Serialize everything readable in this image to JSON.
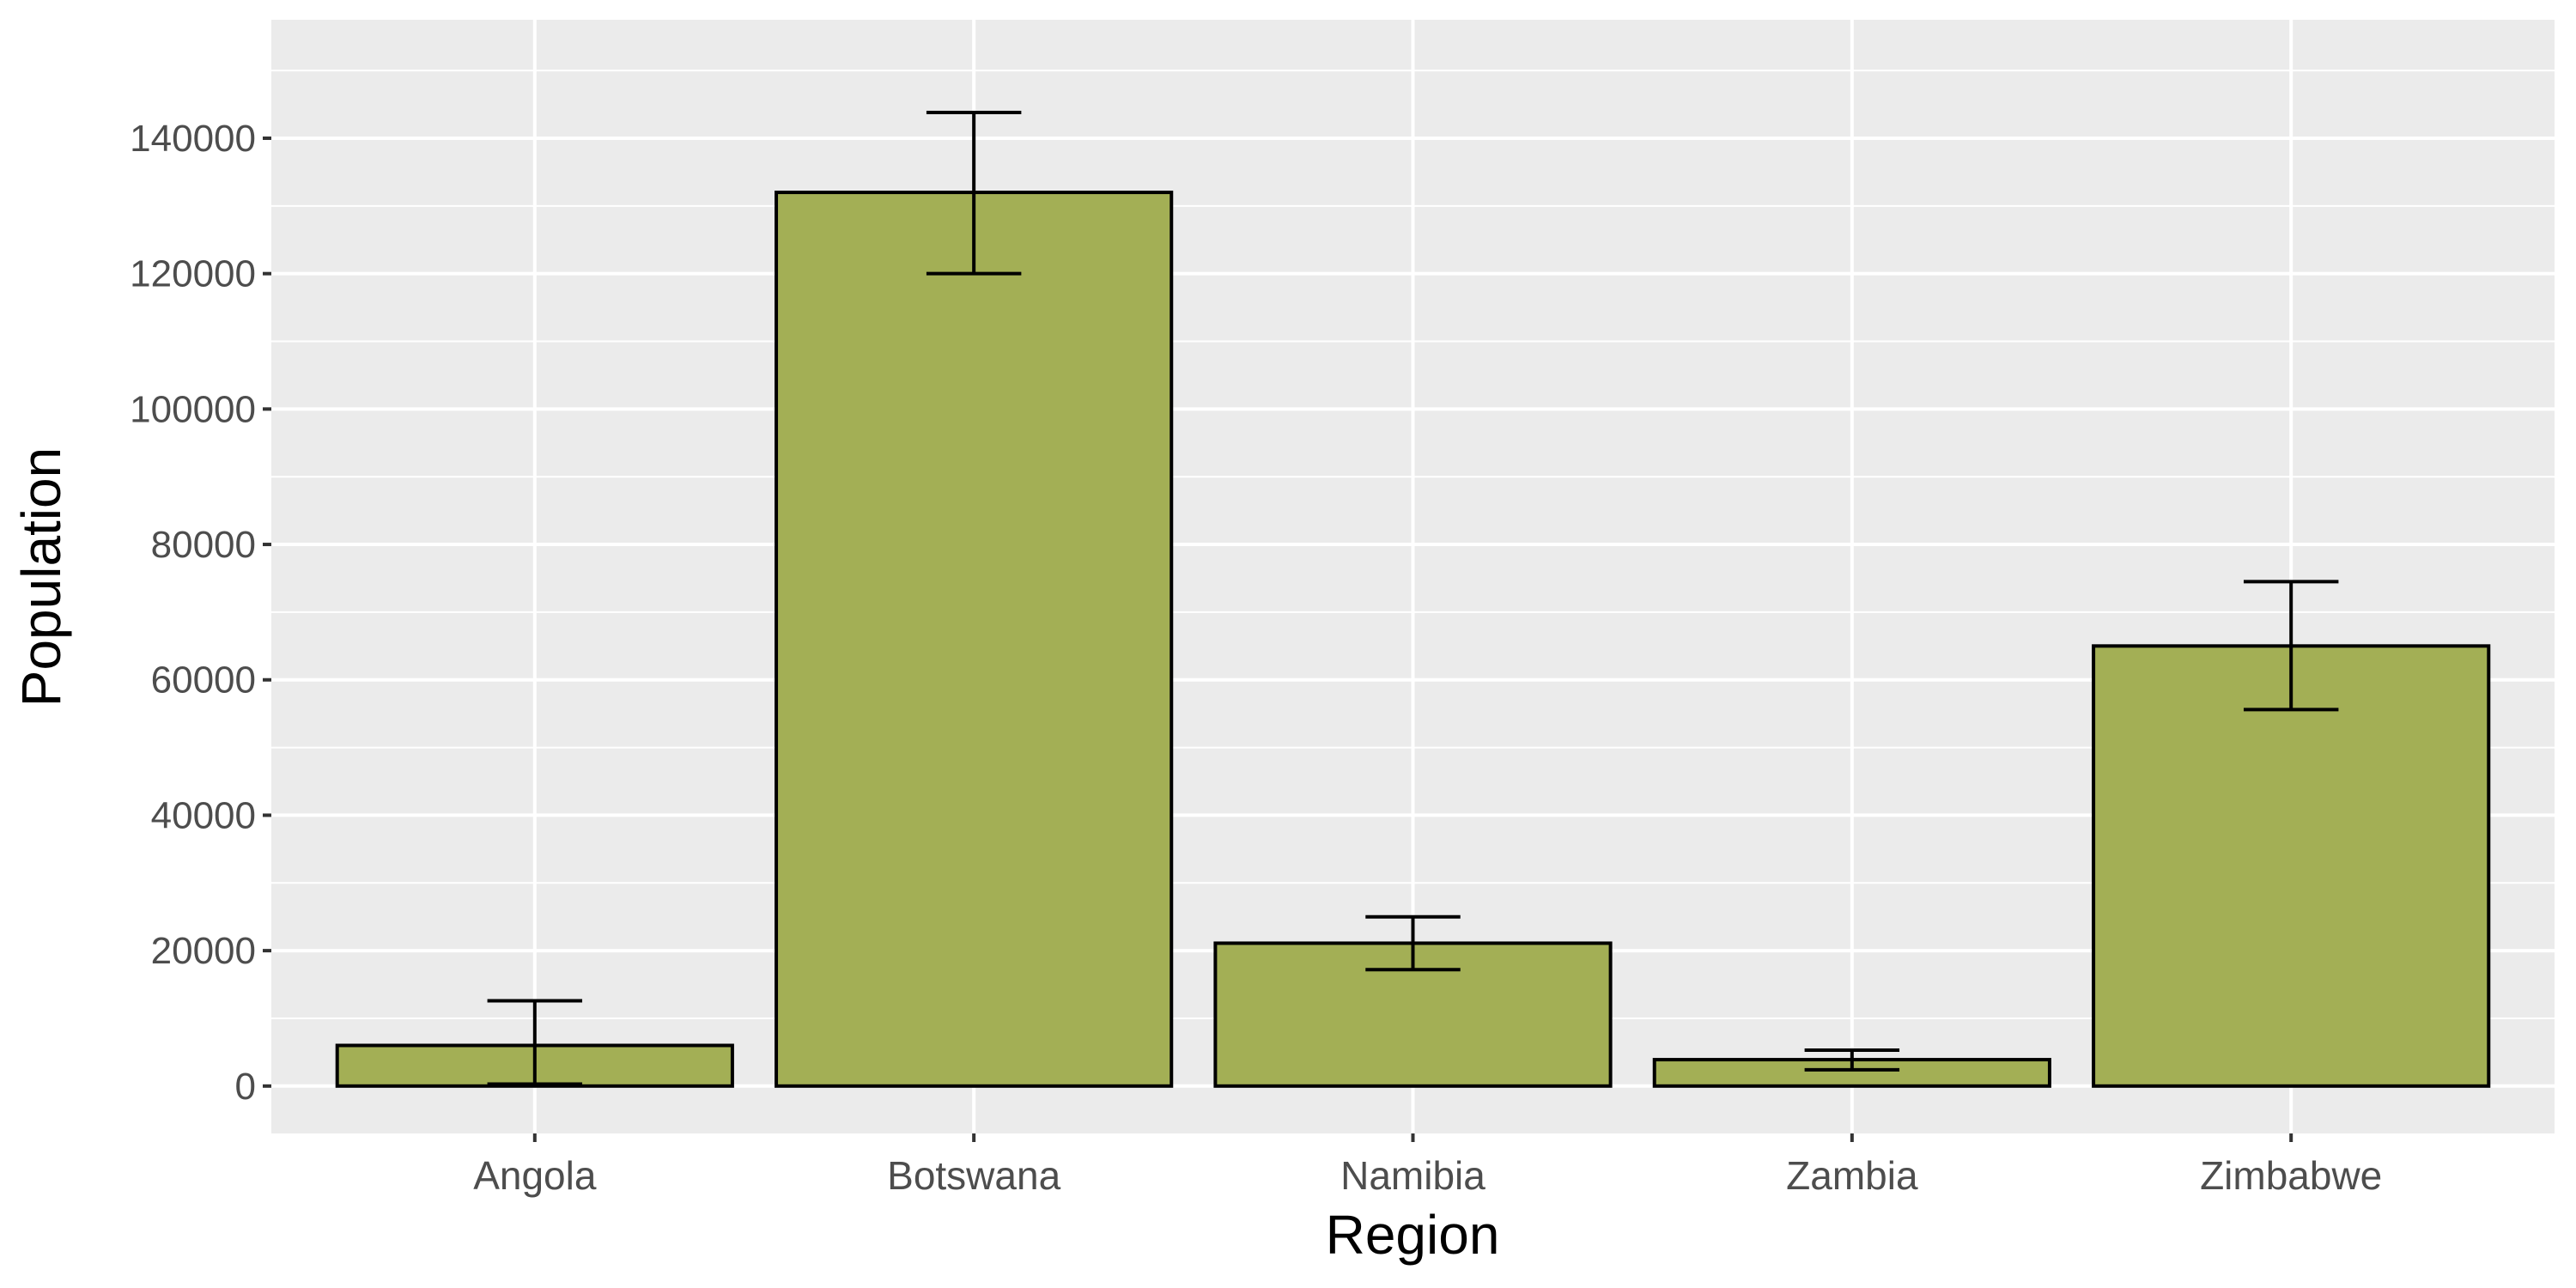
{
  "chart_data": {
    "type": "bar",
    "title": "",
    "xlabel": "Region",
    "ylabel": "Population",
    "categories": [
      "Angola",
      "Botswana",
      "Namibia",
      "Zambia",
      "Zimbabwe"
    ],
    "values": [
      6000,
      132000,
      21100,
      3900,
      65000
    ],
    "error_lower": [
      300,
      120000,
      17200,
      2400,
      55600
    ],
    "error_upper": [
      12600,
      143800,
      25000,
      5300,
      74500
    ],
    "ylim": [
      -7000,
      157500
    ],
    "yticks": [
      0,
      20000,
      40000,
      60000,
      80000,
      100000,
      120000,
      140000
    ],
    "ytick_labels": [
      "0",
      "20000",
      "40000",
      "60000",
      "80000",
      "100000",
      "120000",
      "140000"
    ],
    "grid": true,
    "legend": "none",
    "colors": {
      "bar_fill": "#A3AF55",
      "bar_outline": "#000000",
      "panel_background": "#EBEBEB",
      "grid": "#FFFFFF",
      "tick_label": "#4D4D4D",
      "axis_title": "#000000"
    }
  }
}
